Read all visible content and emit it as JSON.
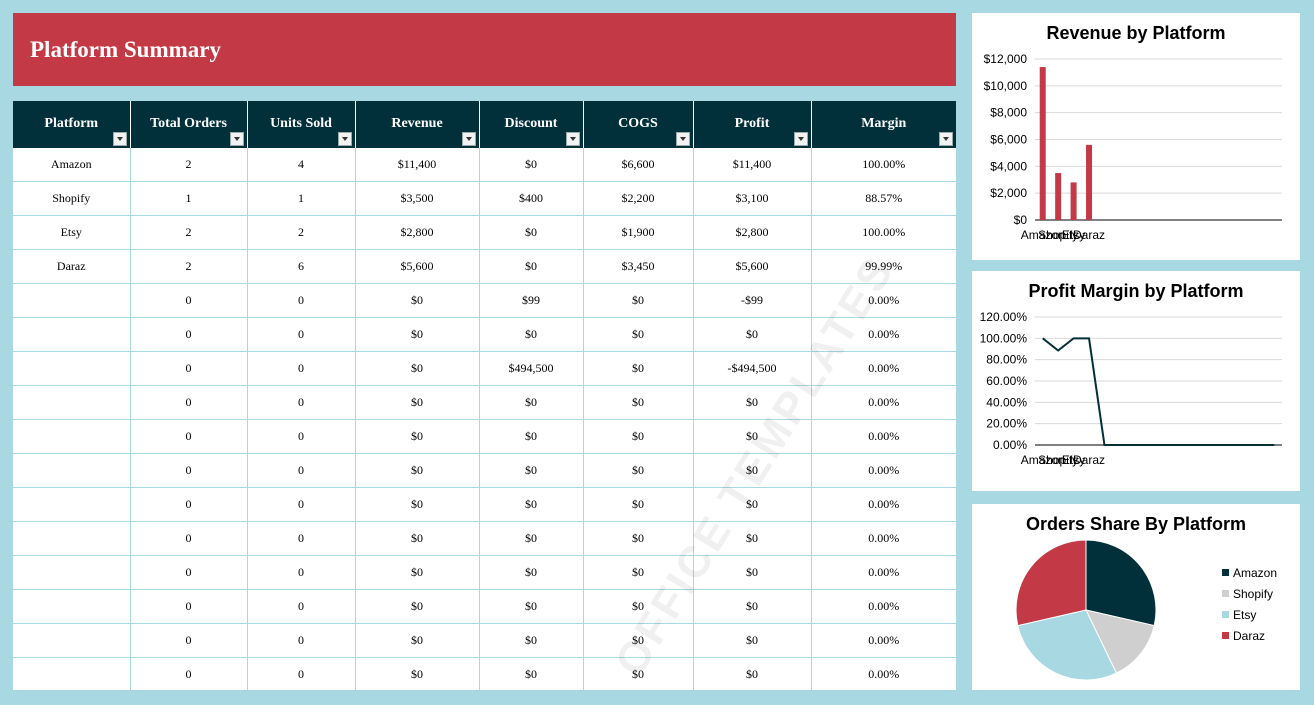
{
  "header": {
    "title": "Platform Summary"
  },
  "table": {
    "columns": [
      "Platform",
      "Total Orders",
      "Units Sold",
      "Revenue",
      "Discount",
      "COGS",
      "Profit",
      "Margin"
    ],
    "rows": [
      [
        "Amazon",
        "2",
        "4",
        "$11,400",
        "$0",
        "$6,600",
        "$11,400",
        "100.00%"
      ],
      [
        "Shopify",
        "1",
        "1",
        "$3,500",
        "$400",
        "$2,200",
        "$3,100",
        "88.57%"
      ],
      [
        "Etsy",
        "2",
        "2",
        "$2,800",
        "$0",
        "$1,900",
        "$2,800",
        "100.00%"
      ],
      [
        "Daraz",
        "2",
        "6",
        "$5,600",
        "$0",
        "$3,450",
        "$5,600",
        "99.99%"
      ],
      [
        "",
        "0",
        "0",
        "$0",
        "$99",
        "$0",
        "-$99",
        "0.00%"
      ],
      [
        "",
        "0",
        "0",
        "$0",
        "$0",
        "$0",
        "$0",
        "0.00%"
      ],
      [
        "",
        "0",
        "0",
        "$0",
        "$494,500",
        "$0",
        "-$494,500",
        "0.00%"
      ],
      [
        "",
        "0",
        "0",
        "$0",
        "$0",
        "$0",
        "$0",
        "0.00%"
      ],
      [
        "",
        "0",
        "0",
        "$0",
        "$0",
        "$0",
        "$0",
        "0.00%"
      ],
      [
        "",
        "0",
        "0",
        "$0",
        "$0",
        "$0",
        "$0",
        "0.00%"
      ],
      [
        "",
        "0",
        "0",
        "$0",
        "$0",
        "$0",
        "$0",
        "0.00%"
      ],
      [
        "",
        "0",
        "0",
        "$0",
        "$0",
        "$0",
        "$0",
        "0.00%"
      ],
      [
        "",
        "0",
        "0",
        "$0",
        "$0",
        "$0",
        "$0",
        "0.00%"
      ],
      [
        "",
        "0",
        "0",
        "$0",
        "$0",
        "$0",
        "$0",
        "0.00%"
      ],
      [
        "",
        "0",
        "0",
        "$0",
        "$0",
        "$0",
        "$0",
        "0.00%"
      ],
      [
        "",
        "0",
        "0",
        "$0",
        "$0",
        "$0",
        "$0",
        "0.00%"
      ]
    ]
  },
  "watermark": "OFFICE TEMPLATES",
  "colors": {
    "red": "#c43946",
    "dark": "#01303b",
    "light": "#a8d8e2",
    "gray": "#cfcfcf"
  },
  "chart_data": [
    {
      "type": "bar",
      "title": "Revenue by Platform",
      "categories": [
        "Amazon",
        "Shopify",
        "Etsy",
        "Daraz",
        "",
        "",
        "",
        "",
        "",
        "",
        "",
        "",
        "",
        "",
        "",
        ""
      ],
      "values": [
        11400,
        3500,
        2800,
        5600,
        0,
        0,
        0,
        0,
        0,
        0,
        0,
        0,
        0,
        0,
        0,
        0
      ],
      "ylim": [
        0,
        12000
      ],
      "yticks": [
        "$0",
        "$2,000",
        "$4,000",
        "$6,000",
        "$8,000",
        "$10,000",
        "$12,000"
      ],
      "grid": true,
      "color": "#c43946"
    },
    {
      "type": "line",
      "title": "Profit Margin by Platform",
      "categories": [
        "Amazon",
        "Shopify",
        "Etsy",
        "Daraz",
        "",
        "",
        "",
        "",
        "",
        "",
        "",
        "",
        "",
        "",
        "",
        ""
      ],
      "values": [
        100.0,
        88.57,
        100.0,
        99.99,
        0,
        0,
        0,
        0,
        0,
        0,
        0,
        0,
        0,
        0,
        0,
        0
      ],
      "ylim": [
        0,
        120
      ],
      "yticks": [
        "0.00%",
        "20.00%",
        "40.00%",
        "60.00%",
        "80.00%",
        "100.00%",
        "120.00%"
      ],
      "grid": true,
      "color": "#01303b"
    },
    {
      "type": "pie",
      "title": "Orders Share By Platform",
      "labels": [
        "Amazon",
        "Shopify",
        "Etsy",
        "Daraz"
      ],
      "values": [
        2,
        1,
        2,
        2
      ],
      "colors": [
        "#01303b",
        "#cfcfcf",
        "#a8d8e2",
        "#c43946"
      ],
      "legend": "right"
    }
  ]
}
